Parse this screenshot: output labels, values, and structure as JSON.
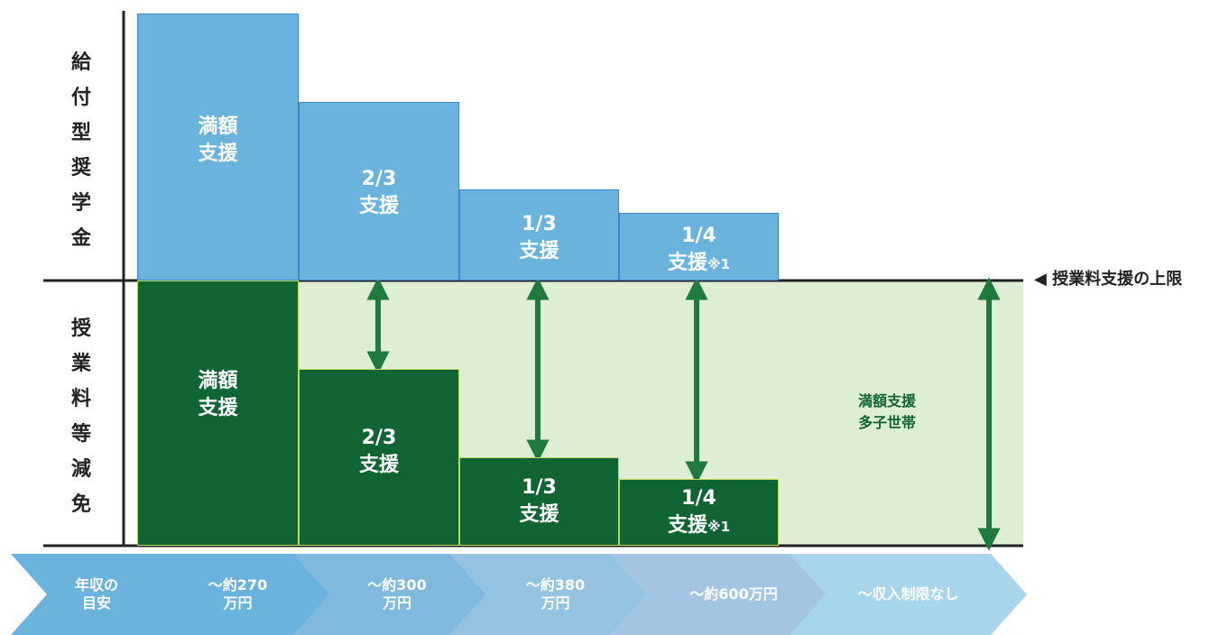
{
  "side_labels": {
    "upper": [
      "給",
      "付",
      "型",
      "奨",
      "学",
      "金"
    ],
    "lower": [
      "授",
      "業",
      "料",
      "等",
      "減",
      "免"
    ]
  },
  "scholarship": [
    {
      "lines": [
        "満額",
        "支援"
      ]
    },
    {
      "lines": [
        "2/3",
        "支援"
      ]
    },
    {
      "lines": [
        "1/3",
        "支援"
      ]
    },
    {
      "lines": [
        "1/4",
        "支援"
      ],
      "note": "※1"
    }
  ],
  "tuition": [
    {
      "lines": [
        "満額",
        "支援"
      ]
    },
    {
      "lines": [
        "2/3",
        "支援"
      ]
    },
    {
      "lines": [
        "1/3",
        "支援"
      ]
    },
    {
      "lines": [
        "1/4",
        "支援"
      ],
      "note": "※1"
    }
  ],
  "limit_label": "◀ 授業料支援の上限",
  "multi_child": [
    "満額支援",
    "多子世帯"
  ],
  "income_steps": [
    {
      "lines": [
        "年収の",
        "目安"
      ]
    },
    {
      "lines": [
        "～約270",
        "万円"
      ]
    },
    {
      "lines": [
        "～約300",
        "万円"
      ]
    },
    {
      "lines": [
        "～約380",
        "万円"
      ]
    },
    {
      "lines": [
        "～約600万円"
      ]
    },
    {
      "lines": [
        "～収入制限なし"
      ]
    }
  ],
  "colors": {
    "scholarship_fill": "#6ab3dd",
    "scholarship_border": "#3d86c7",
    "tuition_fill": "#116535",
    "tuition_border": "#b8d95a",
    "light_green_band": "#deeed5",
    "arrow": "#1e7a3e",
    "chevrons": [
      "#6ab3dd",
      "#6ab3dd",
      "#7fb9de",
      "#93c3e1",
      "#a2c5e4",
      "#a6d5ec"
    ]
  }
}
